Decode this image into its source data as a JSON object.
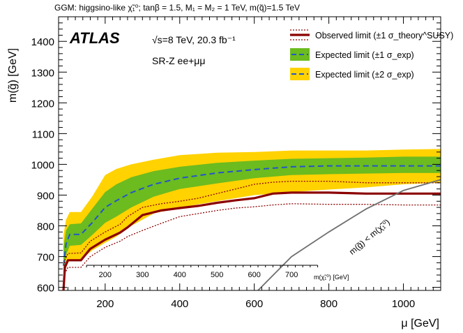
{
  "chart_data": {
    "type": "area",
    "header": "GGM: higgsino-like χ̃₁⁰; tanβ = 1.5, M₁ = M₂ = 1 TeV, m(q̃)=1.5 TeV",
    "experiment": "ATLAS",
    "energy_label": "√s=8 TeV, 20.3 fb⁻¹",
    "region_label": "SR-Z ee+μμ",
    "xlabel": "μ [GeV]",
    "ylabel": "m(g̃) [GeV]",
    "xlim": [
      75,
      1100
    ],
    "ylim": [
      590,
      1480
    ],
    "x_ticks": [
      200,
      400,
      600,
      800,
      1000
    ],
    "y_ticks": [
      600,
      700,
      800,
      900,
      1000,
      1100,
      1200,
      1300,
      1400
    ],
    "secondary_axis": {
      "label": "m(χ̃₁⁰) [GeV]",
      "ticks": [
        200,
        300,
        400,
        500,
        600,
        700
      ]
    },
    "kinematic_line_label": "m(g̃) < m(χ̃₁⁰)",
    "legend": [
      {
        "label": "Observed limit (±1 σ_theory^SUSY)",
        "style": "observed"
      },
      {
        "label": "Expected limit (±1 σ_exp)",
        "style": "exp1"
      },
      {
        "label": "Expected limit (±2 σ_exp)",
        "style": "exp2"
      }
    ],
    "colors": {
      "observed": "#8b0000",
      "expected": "#2255cc",
      "band_1sigma": "#6cbb1f",
      "band_2sigma": "#ffd200",
      "kinematic": "#707070"
    },
    "series": [
      {
        "name": "band_2sigma",
        "x": [
          88,
          95,
          105,
          135,
          165,
          200,
          230,
          270,
          330,
          400,
          500,
          600,
          700,
          800,
          900,
          1000,
          1100
        ],
        "upper": [
          770,
          820,
          845,
          845,
          895,
          965,
          985,
          1000,
          1015,
          1030,
          1038,
          1040,
          1045,
          1045,
          1045,
          1048,
          1050
        ],
        "lower": [
          590,
          665,
          690,
          690,
          720,
          745,
          765,
          800,
          840,
          860,
          880,
          900,
          910,
          918,
          925,
          935,
          940
        ]
      },
      {
        "name": "band_1sigma",
        "x": [
          88,
          95,
          105,
          135,
          165,
          200,
          230,
          270,
          330,
          400,
          500,
          600,
          700,
          800,
          900,
          1000,
          1100
        ],
        "upper": [
          730,
          785,
          805,
          808,
          855,
          910,
          935,
          958,
          978,
          992,
          1005,
          1012,
          1018,
          1020,
          1022,
          1025,
          1025
        ],
        "lower": [
          620,
          705,
          735,
          738,
          770,
          810,
          830,
          860,
          895,
          920,
          938,
          955,
          965,
          968,
          970,
          972,
          972
        ]
      },
      {
        "name": "expected",
        "x": [
          88,
          95,
          105,
          135,
          165,
          200,
          230,
          270,
          330,
          400,
          500,
          600,
          700,
          800,
          900,
          1000,
          1100
        ],
        "y": [
          670,
          740,
          772,
          772,
          810,
          860,
          882,
          908,
          935,
          955,
          972,
          983,
          992,
          995,
          995,
          995,
          995
        ]
      },
      {
        "name": "observed",
        "x": [
          88,
          92,
          100,
          135,
          160,
          200,
          240,
          260,
          300,
          350,
          400,
          450,
          500,
          550,
          600,
          650,
          700,
          800,
          900,
          1000,
          1100
        ],
        "y": [
          590,
          665,
          688,
          688,
          725,
          755,
          778,
          795,
          835,
          850,
          858,
          865,
          875,
          883,
          890,
          905,
          908,
          908,
          905,
          905,
          905
        ]
      },
      {
        "name": "observed_up",
        "x": [
          88,
          92,
          100,
          135,
          160,
          200,
          240,
          260,
          300,
          350,
          400,
          450,
          500,
          550,
          600,
          650,
          700,
          800,
          900,
          1000,
          1100
        ],
        "y": [
          615,
          690,
          710,
          712,
          750,
          780,
          805,
          830,
          860,
          872,
          880,
          890,
          905,
          920,
          935,
          942,
          945,
          945,
          940,
          940,
          940
        ]
      },
      {
        "name": "observed_down",
        "x": [
          88,
          92,
          100,
          135,
          160,
          200,
          240,
          260,
          300,
          350,
          400,
          450,
          500,
          550,
          600,
          650,
          700,
          800,
          900,
          1000,
          1100
        ],
        "y": [
          590,
          645,
          665,
          665,
          700,
          730,
          750,
          765,
          785,
          808,
          830,
          840,
          850,
          858,
          862,
          868,
          872,
          870,
          870,
          868,
          868
        ]
      },
      {
        "name": "kinematic",
        "x": [
          610,
          700,
          800,
          900,
          1000,
          1100
        ],
        "y": [
          590,
          700,
          780,
          855,
          915,
          950
        ]
      }
    ]
  }
}
